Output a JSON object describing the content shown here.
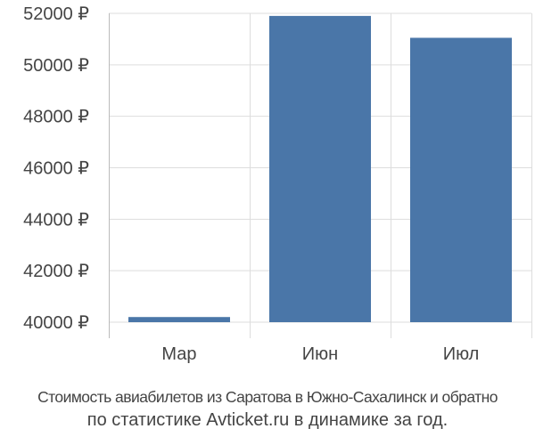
{
  "chart_data": {
    "type": "bar",
    "categories": [
      "Мар",
      "Июн",
      "Июл"
    ],
    "values": [
      40200,
      51900,
      51050
    ],
    "ylim": [
      40000,
      52000
    ],
    "yticks": [
      40000,
      42000,
      44000,
      46000,
      48000,
      50000,
      52000
    ],
    "ytick_labels": [
      "40000 ₽",
      "42000 ₽",
      "44000 ₽",
      "46000 ₽",
      "48000 ₽",
      "50000 ₽",
      "52000 ₽"
    ],
    "grid": true,
    "bar_color": "#4a76a8",
    "grid_color": "#dddddd",
    "text_color": "#444444"
  },
  "caption": {
    "line1": "Стоимость авиабилетов из Саратова в Южно-Сахалинск и обратно",
    "line2": "по статистике Avticket.ru в динамике за год."
  }
}
